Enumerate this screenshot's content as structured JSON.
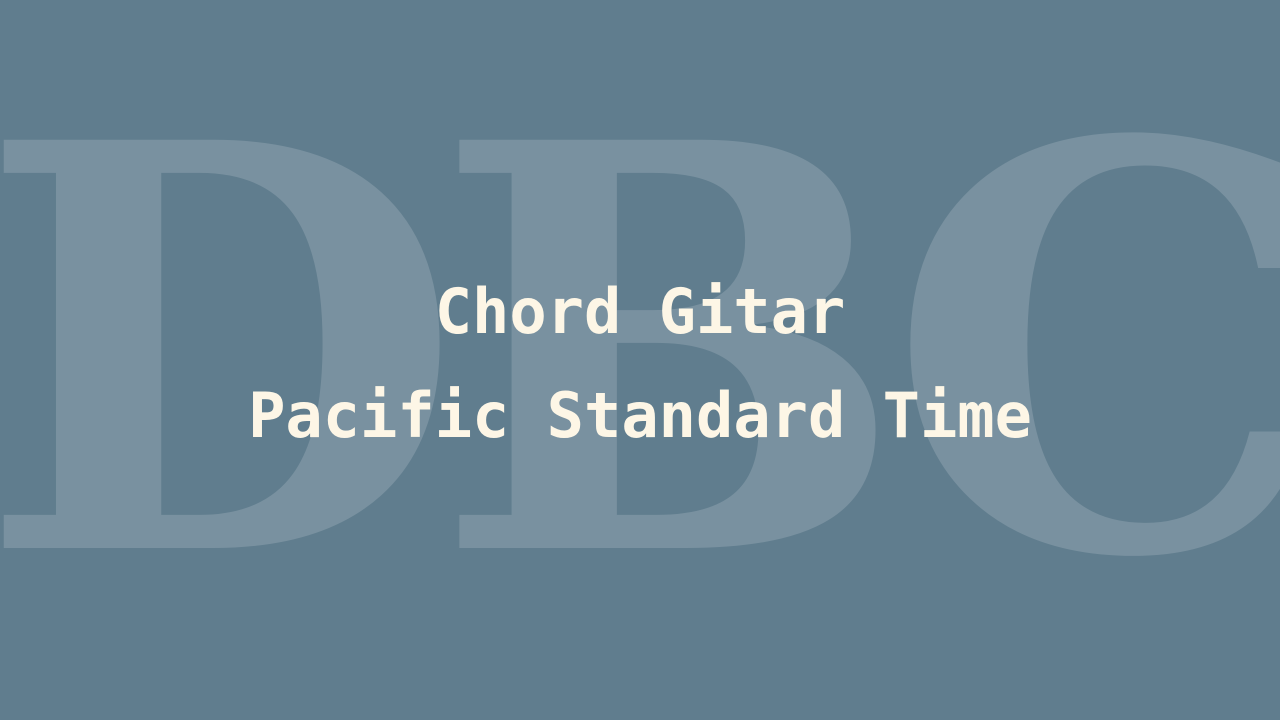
{
  "watermark": {
    "text": "DBC"
  },
  "title": {
    "line1": "Chord Gitar",
    "line2": "Pacific Standard Time"
  },
  "colors": {
    "background": "#607d8e",
    "title_text": "#fdf6e6",
    "watermark": "rgba(255,255,255,0.16)"
  }
}
